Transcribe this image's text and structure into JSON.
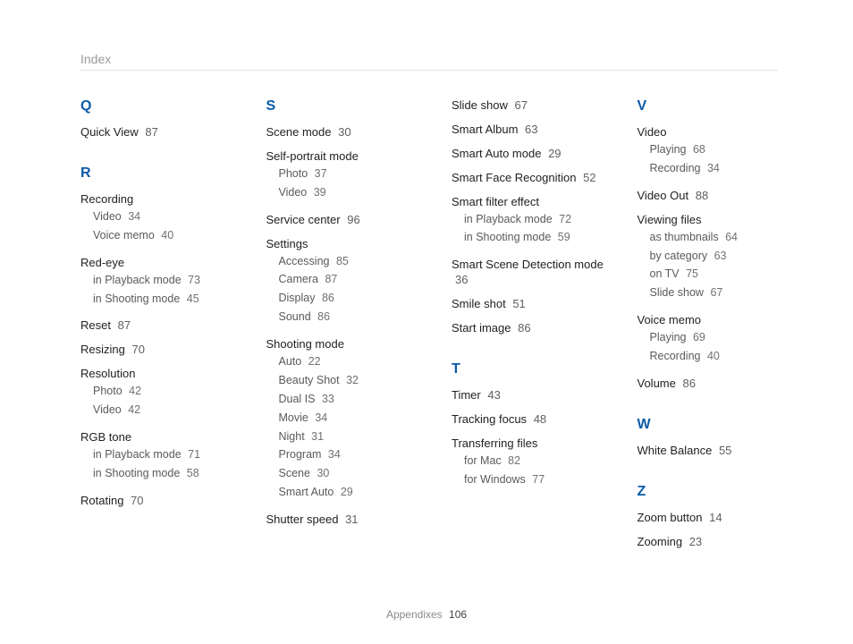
{
  "header": {
    "title": "Index"
  },
  "footer": {
    "section": "Appendixes",
    "page": "106"
  },
  "columns": [
    {
      "blocks": [
        {
          "letter": "Q",
          "items": [
            {
              "type": "entry",
              "label": "Quick View",
              "page": "87"
            }
          ]
        },
        {
          "letter": "R",
          "items": [
            {
              "type": "group",
              "label": "Recording",
              "subs": [
                {
                  "label": "Video",
                  "page": "34"
                },
                {
                  "label": "Voice memo",
                  "page": "40"
                }
              ]
            },
            {
              "type": "group",
              "label": "Red-eye",
              "subs": [
                {
                  "label": "in Playback mode",
                  "page": "73"
                },
                {
                  "label": "in Shooting mode",
                  "page": "45"
                }
              ]
            },
            {
              "type": "entry",
              "label": "Reset",
              "page": "87"
            },
            {
              "type": "entry",
              "label": "Resizing",
              "page": "70"
            },
            {
              "type": "group",
              "label": "Resolution",
              "subs": [
                {
                  "label": "Photo",
                  "page": "42"
                },
                {
                  "label": "Video",
                  "page": "42"
                }
              ]
            },
            {
              "type": "group",
              "label": "RGB tone",
              "subs": [
                {
                  "label": "in Playback mode",
                  "page": "71"
                },
                {
                  "label": "in Shooting mode",
                  "page": "58"
                }
              ]
            },
            {
              "type": "entry",
              "label": "Rotating",
              "page": "70"
            }
          ]
        }
      ]
    },
    {
      "blocks": [
        {
          "letter": "S",
          "items": [
            {
              "type": "entry",
              "label": "Scene mode",
              "page": "30"
            },
            {
              "type": "group",
              "label": "Self-portrait mode",
              "subs": [
                {
                  "label": "Photo",
                  "page": "37"
                },
                {
                  "label": "Video",
                  "page": "39"
                }
              ]
            },
            {
              "type": "entry",
              "label": "Service center",
              "page": "96"
            },
            {
              "type": "group",
              "label": "Settings",
              "subs": [
                {
                  "label": "Accessing",
                  "page": "85"
                },
                {
                  "label": "Camera",
                  "page": "87"
                },
                {
                  "label": "Display",
                  "page": "86"
                },
                {
                  "label": "Sound",
                  "page": "86"
                }
              ]
            },
            {
              "type": "group",
              "label": "Shooting mode",
              "subs": [
                {
                  "label": "Auto",
                  "page": "22"
                },
                {
                  "label": "Beauty Shot",
                  "page": "32"
                },
                {
                  "label": "Dual IS",
                  "page": "33"
                },
                {
                  "label": "Movie",
                  "page": "34"
                },
                {
                  "label": "Night",
                  "page": "31"
                },
                {
                  "label": "Program",
                  "page": "34"
                },
                {
                  "label": "Scene",
                  "page": "30"
                },
                {
                  "label": "Smart Auto",
                  "page": "29"
                }
              ]
            },
            {
              "type": "entry",
              "label": "Shutter speed",
              "page": "31"
            }
          ]
        }
      ]
    },
    {
      "blocks": [
        {
          "items": [
            {
              "type": "entry",
              "label": "Slide show",
              "page": "67"
            },
            {
              "type": "entry",
              "label": "Smart Album",
              "page": "63"
            },
            {
              "type": "entry",
              "label": "Smart Auto mode",
              "page": "29"
            },
            {
              "type": "entry",
              "label": "Smart Face Recognition",
              "page": "52"
            },
            {
              "type": "group",
              "label": "Smart filter effect",
              "subs": [
                {
                  "label": "in Playback mode",
                  "page": "72"
                },
                {
                  "label": "in Shooting mode",
                  "page": "59"
                }
              ]
            },
            {
              "type": "entry",
              "label": "Smart Scene Detection mode",
              "page": "36"
            },
            {
              "type": "entry",
              "label": "Smile shot",
              "page": "51"
            },
            {
              "type": "entry",
              "label": "Start image",
              "page": "86"
            }
          ]
        },
        {
          "letter": "T",
          "items": [
            {
              "type": "entry",
              "label": "Timer",
              "page": "43"
            },
            {
              "type": "entry",
              "label": "Tracking focus",
              "page": "48"
            },
            {
              "type": "group",
              "label": "Transferring files",
              "subs": [
                {
                  "label": "for Mac",
                  "page": "82"
                },
                {
                  "label": "for Windows",
                  "page": "77"
                }
              ]
            }
          ]
        }
      ]
    },
    {
      "blocks": [
        {
          "letter": "V",
          "items": [
            {
              "type": "group",
              "label": "Video",
              "subs": [
                {
                  "label": "Playing",
                  "page": "68"
                },
                {
                  "label": "Recording",
                  "page": "34"
                }
              ]
            },
            {
              "type": "entry",
              "label": "Video Out",
              "page": "88"
            },
            {
              "type": "group",
              "label": "Viewing files",
              "subs": [
                {
                  "label": "as thumbnails",
                  "page": "64"
                },
                {
                  "label": "by category",
                  "page": "63"
                },
                {
                  "label": "on TV",
                  "page": "75"
                },
                {
                  "label": "Slide show",
                  "page": "67"
                }
              ]
            },
            {
              "type": "group",
              "label": "Voice memo",
              "subs": [
                {
                  "label": "Playing",
                  "page": "69"
                },
                {
                  "label": "Recording",
                  "page": "40"
                }
              ]
            },
            {
              "type": "entry",
              "label": "Volume",
              "page": "86"
            }
          ]
        },
        {
          "letter": "W",
          "items": [
            {
              "type": "entry",
              "label": "White Balance",
              "page": "55"
            }
          ]
        },
        {
          "letter": "Z",
          "items": [
            {
              "type": "entry",
              "label": "Zoom button",
              "page": "14"
            },
            {
              "type": "entry",
              "label": "Zooming",
              "page": "23"
            }
          ]
        }
      ]
    }
  ],
  "colors": {
    "letter": "#0a5aa8",
    "text": "#222222",
    "subtext": "#5a5a5a",
    "header": "#9a9a9a",
    "rule": "#e0e0e0",
    "background": "#ffffff"
  }
}
